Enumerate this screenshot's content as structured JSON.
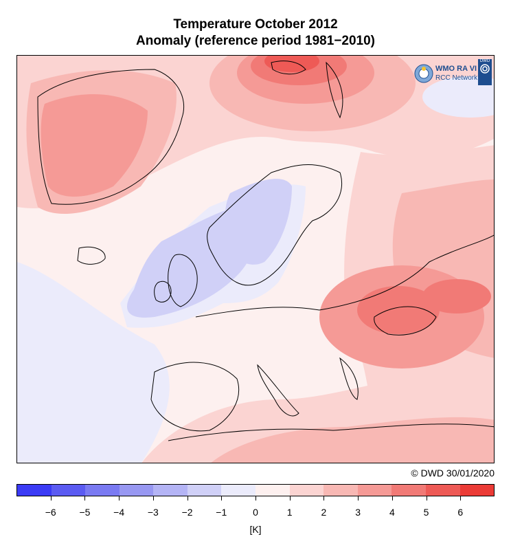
{
  "title_line1": "Temperature October 2012",
  "title_line2": "Anomaly (reference period 1981−2010)",
  "logo": {
    "line1": "WMO RA VI",
    "line2": "RCC Network",
    "badge": "DWD"
  },
  "copyright": "© DWD 30/01/2020",
  "colorbar": {
    "unit": "[K]",
    "colors": [
      "#3b3bf5",
      "#5b5bf2",
      "#7a7af2",
      "#9898f2",
      "#b4b4f5",
      "#d0d0f7",
      "#ebebfb",
      "#fdf0ef",
      "#fbd4d2",
      "#f8b8b4",
      "#f59a96",
      "#f17a76",
      "#ee5a56",
      "#eb3b36"
    ],
    "tick_labels": [
      "−6",
      "−5",
      "−4",
      "−3",
      "−2",
      "−1",
      "0",
      "1",
      "2",
      "3",
      "4",
      "5",
      "6"
    ]
  },
  "map": {
    "region": "Europe",
    "icon": "temperature-anomaly-map",
    "colors": {
      "land_line": "#000000",
      "warm_strong": "#ee5a56",
      "warm": "#f8b8b4",
      "warm_light": "#fbd4d2",
      "neutral": "#fdf0ef",
      "cool_light": "#ebebfb",
      "cool": "#d0d0f7",
      "cool_mid": "#b4b4f5"
    }
  }
}
